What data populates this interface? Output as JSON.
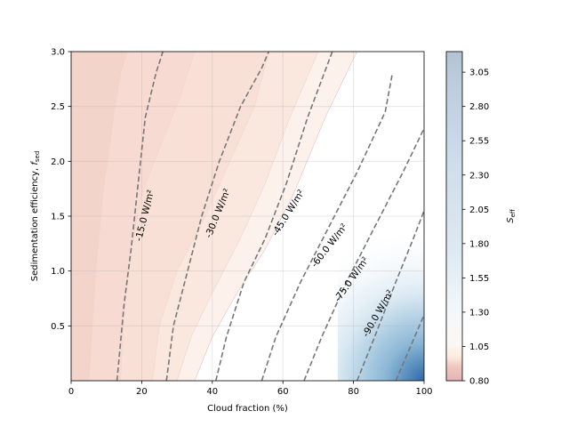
{
  "chart_data": {
    "type": "contour",
    "xlabel": "Cloud fraction (%)",
    "ylabel": "Sedimentation efficiency, ",
    "ylabel_symbol": "f",
    "ylabel_subscript": "sed",
    "xlim": [
      0,
      100
    ],
    "ylim": [
      0,
      3.0
    ],
    "xticks": [
      0,
      20,
      40,
      60,
      80,
      100
    ],
    "xtick_labels": [
      "0",
      "20",
      "40",
      "60",
      "80",
      "100"
    ],
    "yticks": [
      0.5,
      1.0,
      1.5,
      2.0,
      2.5,
      3.0
    ],
    "ytick_labels": [
      "0.5",
      "1.0",
      "1.5",
      "2.0",
      "2.5",
      "3.0"
    ],
    "grid": true,
    "colorbar": {
      "label_symbol": "S",
      "label_subscript": "eff",
      "range": [
        0.8,
        3.2
      ],
      "ticks": [
        0.8,
        1.05,
        1.3,
        1.55,
        1.8,
        2.05,
        2.3,
        2.55,
        2.8,
        3.05
      ],
      "tick_labels": [
        "0.80",
        "1.05",
        "1.30",
        "1.55",
        "1.80",
        "2.05",
        "2.30",
        "2.55",
        "2.80",
        "3.05"
      ],
      "colormap": "red-white-blue (RdBu)"
    },
    "filled_boundaries": [
      {
        "level": 0.85,
        "points": [
          [
            5,
            0
          ],
          [
            7,
            1.0
          ],
          [
            9,
            1.7
          ],
          [
            12,
            2.4
          ],
          [
            14,
            2.8
          ],
          [
            16,
            3.0
          ]
        ]
      },
      {
        "level": 0.9,
        "points": [
          [
            14,
            0
          ],
          [
            15,
            0.6
          ],
          [
            17,
            1.2
          ],
          [
            20,
            1.7
          ],
          [
            26,
            2.2
          ],
          [
            31,
            2.6
          ],
          [
            35,
            3.0
          ]
        ]
      },
      {
        "level": 0.95,
        "points": [
          [
            23,
            0
          ],
          [
            25,
            0.5
          ],
          [
            30,
            1.0
          ],
          [
            38,
            1.5
          ],
          [
            45,
            2.0
          ],
          [
            52,
            2.5
          ],
          [
            56,
            3.0
          ]
        ]
      },
      {
        "level": 1.0,
        "points": [
          [
            30,
            0
          ],
          [
            34,
            0.4
          ],
          [
            40,
            0.8
          ],
          [
            48,
            1.3
          ],
          [
            55,
            1.8
          ],
          [
            62,
            2.4
          ],
          [
            70,
            3.0
          ]
        ]
      },
      {
        "level": 1.05,
        "points": [
          [
            35,
            0
          ],
          [
            40,
            0.4
          ],
          [
            47,
            0.8
          ],
          [
            55,
            1.2
          ],
          [
            63,
            1.7
          ],
          [
            72,
            2.4
          ],
          [
            81,
            3.0
          ]
        ]
      }
    ],
    "contour_lines": [
      {
        "label": "-15.0 W/m²",
        "points": [
          [
            13,
            0
          ],
          [
            15,
            0.7
          ],
          [
            17,
            1.2
          ],
          [
            19,
            1.8
          ],
          [
            21,
            2.4
          ],
          [
            24,
            2.8
          ],
          [
            26,
            3.0
          ]
        ]
      },
      {
        "label": "-30.0 W/m²",
        "points": [
          [
            27,
            0
          ],
          [
            29,
            0.5
          ],
          [
            33,
            1.0
          ],
          [
            37,
            1.5
          ],
          [
            42,
            2.0
          ],
          [
            48,
            2.5
          ],
          [
            54,
            2.85
          ],
          [
            56,
            3.0
          ]
        ]
      },
      {
        "label": "-45.0 W/m²",
        "points": [
          [
            41,
            0
          ],
          [
            44,
            0.4
          ],
          [
            49,
            0.9
          ],
          [
            55,
            1.3
          ],
          [
            61,
            1.8
          ],
          [
            67,
            2.4
          ],
          [
            74,
            3.0
          ]
        ]
      },
      {
        "label": "-60.0 W/m²",
        "points": [
          [
            54,
            0
          ],
          [
            58,
            0.4
          ],
          [
            65,
            0.9
          ],
          [
            73,
            1.4
          ],
          [
            81,
            1.9
          ],
          [
            89,
            2.45
          ],
          [
            91,
            2.8
          ]
        ]
      },
      {
        "label": "-75.0 W/m²",
        "points": [
          [
            66,
            0
          ],
          [
            71,
            0.4
          ],
          [
            78,
            0.9
          ],
          [
            86,
            1.4
          ],
          [
            94,
            1.9
          ],
          [
            100,
            2.3
          ]
        ]
      },
      {
        "label": "-90.0 W/m²",
        "points": [
          [
            81,
            0
          ],
          [
            86,
            0.4
          ],
          [
            92,
            0.9
          ],
          [
            97,
            1.3
          ],
          [
            100,
            1.55
          ]
        ]
      },
      {
        "label": "",
        "points": [
          [
            92,
            0
          ],
          [
            96,
            0.3
          ],
          [
            100,
            0.6
          ]
        ]
      }
    ]
  }
}
